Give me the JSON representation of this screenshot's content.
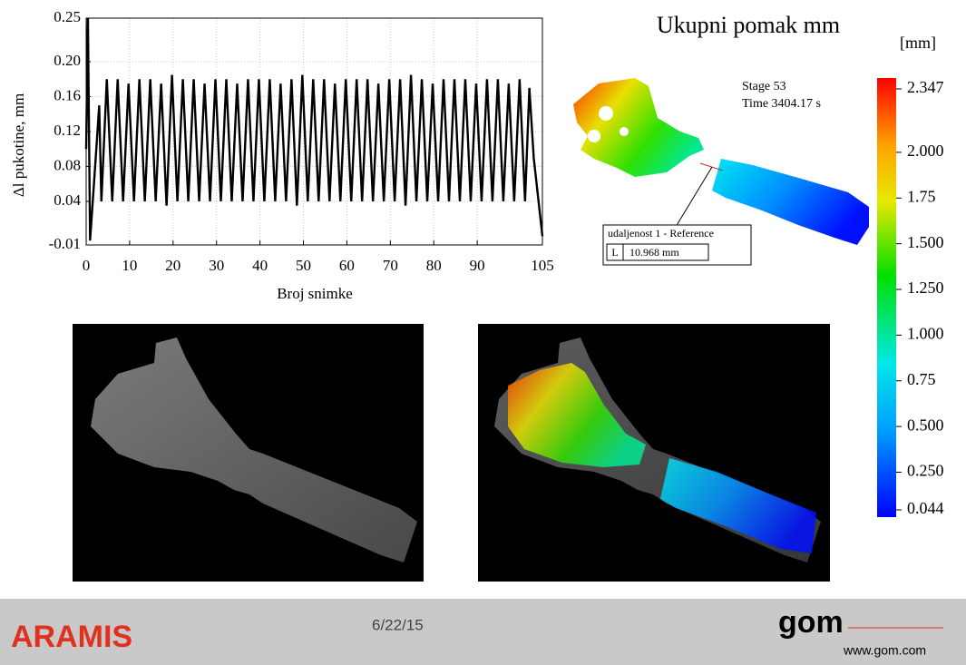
{
  "chart_data": {
    "type": "line",
    "xlabel": "Broj snimke",
    "ylabel": "Δl pukotine, mm",
    "xlim": [
      0,
      105
    ],
    "ylim": [
      -0.01,
      0.25
    ],
    "xticks": [
      0,
      10,
      20,
      30,
      40,
      50,
      60,
      70,
      80,
      90,
      105
    ],
    "yticks": [
      -0.01,
      0.04,
      0.08,
      0.12,
      0.16,
      {
        "value": 0.2,
        "label": "0.20"
      },
      0.25
    ],
    "grid": true,
    "x": [
      0,
      0.4,
      0.9,
      2.2,
      3,
      3.5,
      4.75,
      6,
      7.25,
      8.5,
      9.75,
      11,
      12.25,
      13.5,
      14.75,
      16,
      17.25,
      18.5,
      19.75,
      21,
      22.25,
      23.5,
      24.75,
      26,
      27.25,
      28.5,
      29.75,
      31,
      32.25,
      33.5,
      34.75,
      36,
      37.25,
      38.5,
      39.75,
      41,
      42.25,
      43.5,
      44.75,
      46,
      47.25,
      48.5,
      49.75,
      51,
      52.25,
      53.5,
      54.75,
      56,
      57.25,
      58.5,
      59.75,
      61,
      62.25,
      63.5,
      64.75,
      66,
      67.25,
      68.5,
      69.75,
      71,
      72.25,
      73.5,
      74.75,
      76,
      77.25,
      78.5,
      79.75,
      81,
      82.25,
      83.5,
      84.75,
      86,
      87.25,
      88.5,
      89.75,
      91,
      92.25,
      93.5,
      94.75,
      96,
      97.25,
      98.5,
      99.75,
      101,
      102,
      103,
      105
    ],
    "series": [
      {
        "name": "Δl pukotine",
        "color": "#000000",
        "values": [
          0.1,
          0.25,
          -0.005,
          0.09,
          0.15,
          0.04,
          0.18,
          0.04,
          0.18,
          0.04,
          0.175,
          0.04,
          0.18,
          0.04,
          0.18,
          0.04,
          0.175,
          0.035,
          0.185,
          0.04,
          0.18,
          0.04,
          0.18,
          0.04,
          0.175,
          0.04,
          0.18,
          0.04,
          0.18,
          0.04,
          0.175,
          0.04,
          0.18,
          0.04,
          0.18,
          0.04,
          0.18,
          0.04,
          0.175,
          0.04,
          0.18,
          0.035,
          0.185,
          0.04,
          0.18,
          0.04,
          0.18,
          0.04,
          0.175,
          0.04,
          0.18,
          0.04,
          0.18,
          0.04,
          0.18,
          0.04,
          0.175,
          0.04,
          0.18,
          0.04,
          0.18,
          0.035,
          0.185,
          0.04,
          0.18,
          0.04,
          0.175,
          0.04,
          0.18,
          0.04,
          0.18,
          0.04,
          0.18,
          0.04,
          0.175,
          0.04,
          0.18,
          0.04,
          0.18,
          0.04,
          0.175,
          0.04,
          0.18,
          0.04,
          0.17,
          0.09,
          0.0
        ]
      }
    ]
  },
  "colormap": {
    "title": "Ukupni pomak  mm",
    "stage": "Stage 53",
    "time": "Time  3404.17 s",
    "measure": {
      "label": "udaljenost 1 - Reference",
      "key": "L",
      "value": "10.968 mm"
    }
  },
  "colorbar": {
    "unit": "[mm]",
    "ticks": [
      2.347,
      {
        "value": 2.0,
        "label": "2.000"
      },
      1.75,
      {
        "value": 1.5,
        "label": "1.500"
      },
      {
        "value": 1.25,
        "label": "1.250"
      },
      {
        "value": 1.0,
        "label": "1.000"
      },
      0.75,
      {
        "value": 0.5,
        "label": "0.500"
      },
      {
        "value": 0.25,
        "label": "0.250"
      },
      0.044
    ],
    "tick_labels_fixed": false
  },
  "footer": {
    "brand": "ARAMIS",
    "date": "6/22/15",
    "logo": "gom",
    "url": "www.gom.com"
  }
}
